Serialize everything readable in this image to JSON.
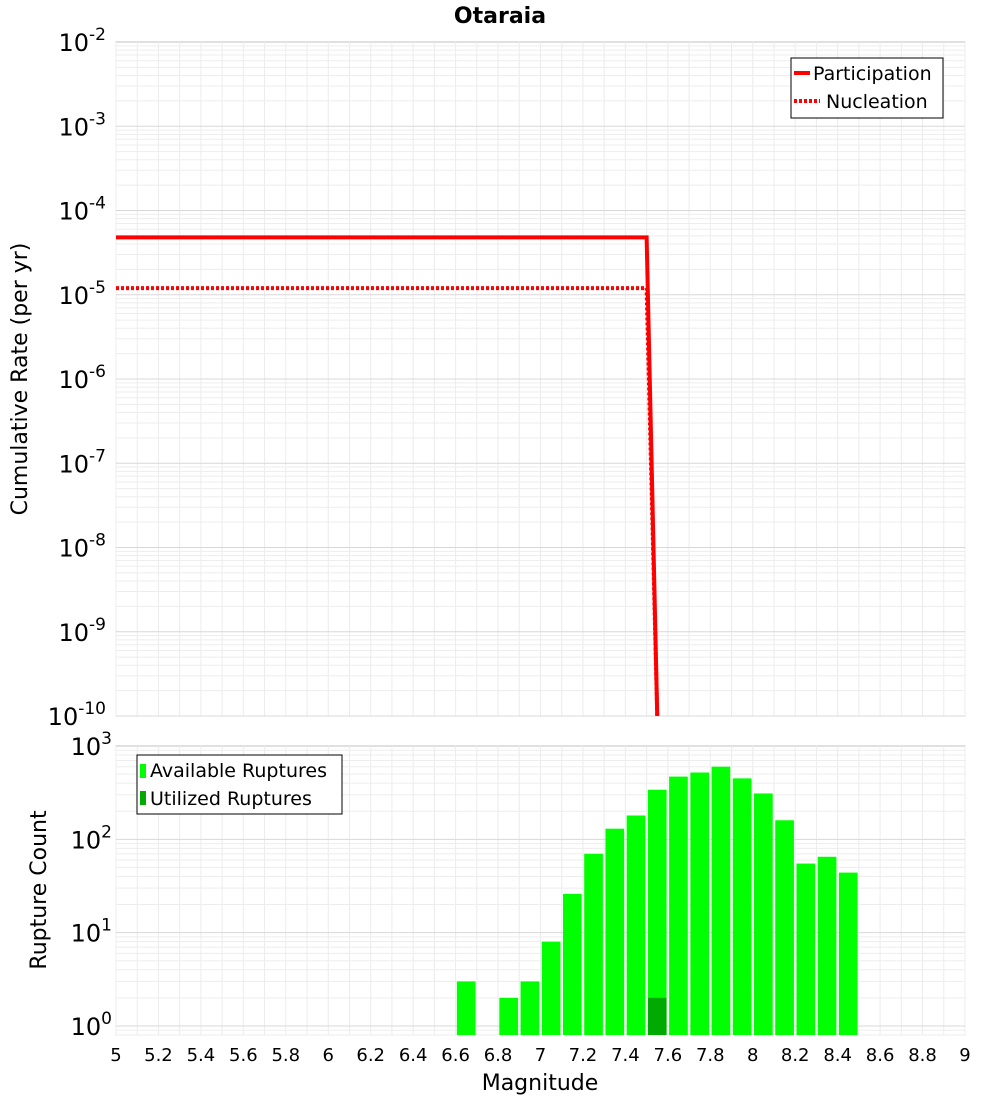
{
  "title": "Otaraia",
  "chart_data": [
    {
      "type": "line",
      "ylabel": "Cumulative Rate (per yr)",
      "yscale": "log",
      "ylim": [
        1e-10,
        0.01
      ],
      "xlim": [
        5,
        9
      ],
      "y_tick_labels": [
        {
          "base": "10",
          "exp": "-10",
          "value": 1e-10
        },
        {
          "base": "10",
          "exp": "-9",
          "value": 1e-09
        },
        {
          "base": "10",
          "exp": "-8",
          "value": 1e-08
        },
        {
          "base": "10",
          "exp": "-7",
          "value": 1e-07
        },
        {
          "base": "10",
          "exp": "-6",
          "value": 1e-06
        },
        {
          "base": "10",
          "exp": "-5",
          "value": 1e-05
        },
        {
          "base": "10",
          "exp": "-4",
          "value": 0.0001
        },
        {
          "base": "10",
          "exp": "-3",
          "value": 0.001
        },
        {
          "base": "10",
          "exp": "-2",
          "value": 0.01
        }
      ],
      "grid": true,
      "legend_position": "top-right",
      "series": [
        {
          "name": "Participation",
          "color": "#ff0000",
          "style": "solid",
          "x": [
            5.0,
            7.5,
            7.55
          ],
          "y": [
            4.8e-05,
            4.8e-05,
            1e-10
          ]
        },
        {
          "name": "Nucleation",
          "color": "#ff0000",
          "style": "dotted",
          "x": [
            5.0,
            7.5,
            7.55
          ],
          "y": [
            1.2e-05,
            1.2e-05,
            1e-10
          ]
        }
      ]
    },
    {
      "type": "bar",
      "xlabel": "Magnitude",
      "ylabel": "Rupture Count",
      "yscale": "log",
      "ylim": [
        0.8,
        1000
      ],
      "xlim": [
        5,
        9
      ],
      "x_tick_labels": [
        "5",
        "5.2",
        "5.4",
        "5.6",
        "5.8",
        "6",
        "6.2",
        "6.4",
        "6.6",
        "6.8",
        "7",
        "7.2",
        "7.4",
        "7.6",
        "7.8",
        "8",
        "8.2",
        "8.4",
        "8.6",
        "8.8",
        "9"
      ],
      "y_tick_labels": [
        {
          "base": "10",
          "exp": "0",
          "value": 1
        },
        {
          "base": "10",
          "exp": "1",
          "value": 10
        },
        {
          "base": "10",
          "exp": "2",
          "value": 100
        },
        {
          "base": "10",
          "exp": "3",
          "value": 1000
        }
      ],
      "grid": true,
      "legend_position": "top-left",
      "bin_width": 0.1,
      "series": [
        {
          "name": "Available Ruptures",
          "color": "#00ff00",
          "x": [
            6.65,
            6.85,
            6.95,
            7.05,
            7.15,
            7.25,
            7.35,
            7.45,
            7.55,
            7.65,
            7.75,
            7.85,
            7.95,
            8.05,
            8.15,
            8.25,
            8.35,
            8.45
          ],
          "values": [
            3,
            2,
            3,
            8,
            26,
            70,
            130,
            180,
            340,
            470,
            520,
            600,
            450,
            310,
            160,
            55,
            65,
            44
          ]
        },
        {
          "name": "Utilized Ruptures",
          "color": "#00aa00",
          "x": [
            7.55
          ],
          "values": [
            2
          ]
        }
      ]
    }
  ]
}
